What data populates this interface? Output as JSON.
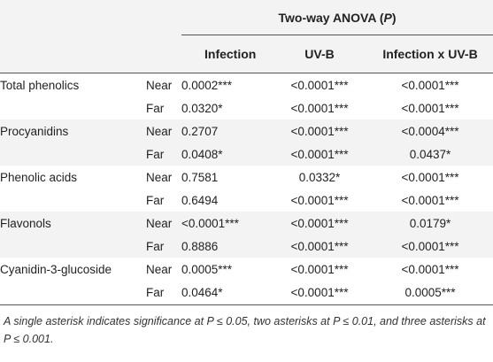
{
  "header": {
    "group_title": "Two-way ANOVA (",
    "group_title_p": "P",
    "group_title_end": ")",
    "columns": [
      "Infection",
      "UV-B",
      "Infection x UV-B"
    ]
  },
  "rows": [
    {
      "compound": "Total phenolics",
      "position": "Near",
      "infection": "0.0002***",
      "uvb": "<0.0001***",
      "ixu": "<0.0001***"
    },
    {
      "compound": "",
      "position": "Far",
      "infection": "0.0320*",
      "uvb": "<0.0001***",
      "ixu": "<0.0001***"
    },
    {
      "compound": "Procyanidins",
      "position": "Near",
      "infection": "0.2707",
      "uvb": "<0.0001***",
      "ixu": "<0.0004***"
    },
    {
      "compound": "",
      "position": "Far",
      "infection": "0.0408*",
      "uvb": "<0.0001***",
      "ixu": "0.0437*"
    },
    {
      "compound": "Phenolic acids",
      "position": "Near",
      "infection": "0.7581",
      "uvb": "0.0332*",
      "ixu": "<0.0001***"
    },
    {
      "compound": "",
      "position": "Far",
      "infection": "0.6494",
      "uvb": "<0.0001***",
      "ixu": "<0.0001***"
    },
    {
      "compound": "Flavonols",
      "position": "Near",
      "infection": "<0.0001***",
      "uvb": "<0.0001***",
      "ixu": "0.0179*"
    },
    {
      "compound": "",
      "position": "Far",
      "infection": "0.8886",
      "uvb": "<0.0001***",
      "ixu": "<0.0001***"
    },
    {
      "compound": "Cyanidin-3-glucoside",
      "position": "Near",
      "infection": "0.0005***",
      "uvb": "<0.0001***",
      "ixu": "<0.0001***"
    },
    {
      "compound": "",
      "position": "Far",
      "infection": "0.0464*",
      "uvb": "<0.0001***",
      "ixu": "0.0005***"
    }
  ],
  "footnote": "A single asterisk indicates significance at P ≤ 0.05, two asterisks at P ≤ 0.01, and three asterisks at P ≤ 0.001."
}
